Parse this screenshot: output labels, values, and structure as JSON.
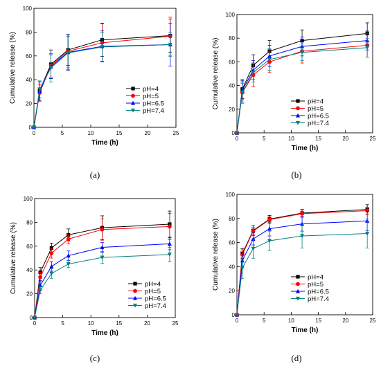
{
  "panel_captions": [
    "(a)",
    "(b)",
    "(c)",
    "(d)"
  ],
  "chart_data": [
    {
      "type": "line",
      "panel": "(a)",
      "xlabel": "Time (h)",
      "ylabel": "Cumulative release (%)",
      "xlim": [
        0,
        25
      ],
      "ylim": [
        0,
        100
      ],
      "xticks": [
        0,
        5,
        10,
        15,
        20,
        25
      ],
      "yticks": [
        0,
        20,
        40,
        60,
        80,
        100
      ],
      "grid": false,
      "legend_position": "center-right",
      "x": [
        0,
        1,
        3,
        6,
        12,
        24
      ],
      "series": [
        {
          "name": "pH=4",
          "color": "#000000",
          "marker": "square",
          "values": [
            0,
            31,
            53,
            65,
            73.5,
            77
          ],
          "errors": [
            0,
            8,
            12,
            13,
            14,
            14
          ]
        },
        {
          "name": "pH=5",
          "color": "#ff0000",
          "marker": "circle",
          "values": [
            0,
            29,
            52,
            64,
            71,
            76.5
          ],
          "errors": [
            0,
            7,
            10,
            14,
            16,
            16
          ]
        },
        {
          "name": "pH=6.5",
          "color": "#0000ff",
          "marker": "triangle-up",
          "values": [
            0,
            30,
            51,
            63,
            68,
            69.5
          ],
          "errors": [
            0,
            8,
            10,
            15,
            13,
            18
          ]
        },
        {
          "name": "pH=7.4",
          "color": "#008080",
          "marker": "triangle-down",
          "values": [
            0,
            32,
            50,
            62.5,
            67.5,
            69.5
          ],
          "errors": [
            0,
            7,
            12,
            14,
            12,
            10
          ]
        }
      ]
    },
    {
      "type": "line",
      "panel": "(b)",
      "xlabel": "Time (h)",
      "ylabel": "Cumulative release (%)",
      "xlim": [
        0,
        25
      ],
      "ylim": [
        0,
        100
      ],
      "xticks": [
        0,
        5,
        10,
        15,
        20,
        25
      ],
      "yticks": [
        0,
        20,
        40,
        60,
        80,
        100
      ],
      "grid": false,
      "legend_position": "bottom-right",
      "x": [
        0,
        1,
        3,
        6,
        12,
        24
      ],
      "series": [
        {
          "name": "pH=4",
          "color": "#000000",
          "marker": "square",
          "values": [
            0,
            37,
            57,
            69,
            78,
            84
          ],
          "errors": [
            0,
            8,
            9,
            9,
            9,
            9
          ]
        },
        {
          "name": "pH=5",
          "color": "#ff0000",
          "marker": "circle",
          "values": [
            0,
            34,
            49,
            60,
            69,
            74
          ],
          "errors": [
            0,
            8,
            10,
            9,
            10,
            10
          ]
        },
        {
          "name": "pH=6.5",
          "color": "#0000ff",
          "marker": "triangle-up",
          "values": [
            0,
            36,
            53,
            65,
            73,
            78
          ],
          "errors": [
            0,
            8,
            8,
            9,
            8,
            8
          ]
        },
        {
          "name": "pH=7.4",
          "color": "#008080",
          "marker": "triangle-down",
          "values": [
            0,
            34,
            51,
            62,
            68,
            72
          ],
          "errors": [
            0,
            9,
            8,
            9,
            7,
            8
          ]
        }
      ]
    },
    {
      "type": "line",
      "panel": "(c)",
      "xlabel": "Time (h)",
      "ylabel": "Cumulative release (%)",
      "xlim": [
        0,
        25
      ],
      "ylim": [
        0,
        100
      ],
      "xticks": [
        0,
        5,
        10,
        15,
        20,
        25
      ],
      "yticks": [
        0,
        20,
        40,
        60,
        80,
        100
      ],
      "grid": false,
      "legend_position": "bottom-right",
      "x": [
        0,
        1,
        3,
        6,
        12,
        24
      ],
      "series": [
        {
          "name": "pH=4",
          "color": "#000000",
          "marker": "square",
          "values": [
            0,
            38,
            58.5,
            69.5,
            75.5,
            78.5
          ],
          "errors": [
            0,
            4,
            4,
            5,
            10,
            11
          ]
        },
        {
          "name": "pH=5",
          "color": "#ff0000",
          "marker": "circle",
          "values": [
            0,
            34,
            54,
            66,
            74,
            76.5
          ],
          "errors": [
            0,
            4,
            4,
            4,
            9,
            11
          ]
        },
        {
          "name": "pH=6.5",
          "color": "#0000ff",
          "marker": "triangle-up",
          "values": [
            0,
            27,
            43,
            52,
            59,
            62
          ],
          "errors": [
            0,
            4,
            4,
            4,
            4,
            5
          ]
        },
        {
          "name": "pH=7.4",
          "color": "#008080",
          "marker": "triangle-down",
          "values": [
            0,
            23,
            37,
            45,
            50.5,
            53
          ],
          "errors": [
            0,
            3,
            4,
            3,
            5,
            6
          ]
        }
      ]
    },
    {
      "type": "line",
      "panel": "(d)",
      "xlabel": "Time (h)",
      "ylabel": "Cumulative release (%)",
      "xlim": [
        0,
        25
      ],
      "ylim": [
        0,
        100
      ],
      "xticks": [
        0,
        5,
        10,
        15,
        20,
        25
      ],
      "yticks": [
        0,
        20,
        40,
        60,
        80,
        100
      ],
      "grid": false,
      "legend_position": "bottom-right",
      "x": [
        0,
        1,
        3,
        6,
        12,
        24
      ],
      "series": [
        {
          "name": "pH=4",
          "color": "#000000",
          "marker": "square",
          "values": [
            0,
            51,
            70,
            79.5,
            84.5,
            87.5
          ],
          "errors": [
            0,
            4,
            4,
            3,
            3,
            4
          ]
        },
        {
          "name": "pH=5",
          "color": "#ff0000",
          "marker": "circle",
          "values": [
            0,
            50,
            69.5,
            79,
            84,
            86.5
          ],
          "errors": [
            0,
            4,
            3,
            3,
            3,
            3
          ]
        },
        {
          "name": "pH=6.5",
          "color": "#0000ff",
          "marker": "triangle-up",
          "values": [
            0,
            45,
            63,
            71.5,
            75.5,
            78
          ],
          "errors": [
            0,
            6,
            5,
            6,
            6,
            8
          ]
        },
        {
          "name": "pH=7.4",
          "color": "#008080",
          "marker": "triangle-down",
          "values": [
            0,
            39,
            55,
            61.5,
            65.5,
            67.5
          ],
          "errors": [
            0,
            9,
            8,
            8,
            10,
            12
          ]
        }
      ]
    }
  ]
}
